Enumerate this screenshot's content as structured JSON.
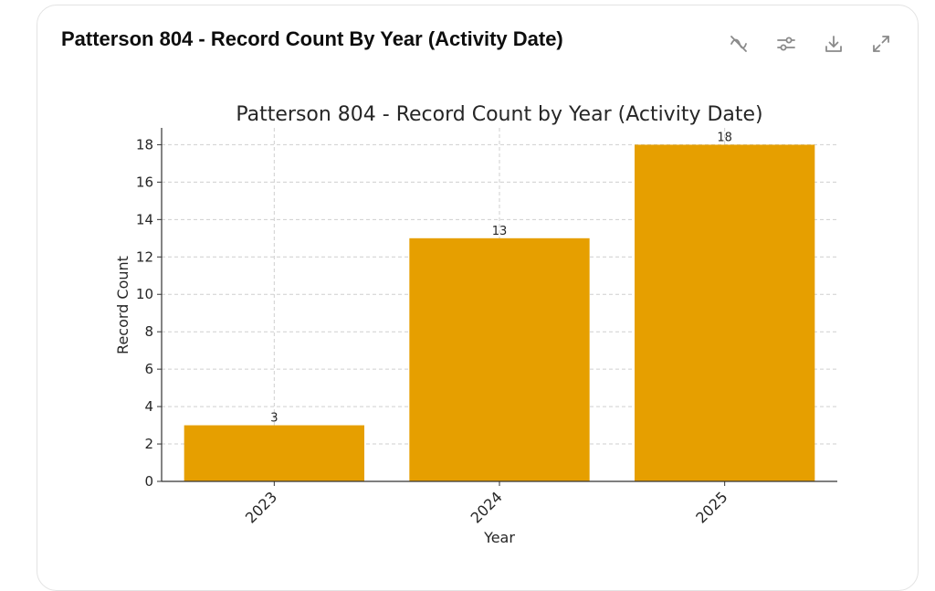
{
  "card": {
    "title": "Patterson 804 - Record Count By Year (Activity Date)"
  },
  "toolbar": {
    "icons": [
      "hide-series-icon",
      "settings-sliders-icon",
      "download-icon",
      "expand-icon"
    ]
  },
  "chart_data": {
    "type": "bar",
    "title": "Patterson 804 - Record Count by Year (Activity Date)",
    "xlabel": "Year",
    "ylabel": "Record Count",
    "categories": [
      "2023",
      "2024",
      "2025"
    ],
    "values": [
      3,
      13,
      18
    ],
    "data_labels": [
      "3",
      "13",
      "18"
    ],
    "yticks": [
      "0",
      "2",
      "4",
      "6",
      "8",
      "10",
      "12",
      "14",
      "16",
      "18"
    ],
    "ylim": [
      0,
      18.9
    ],
    "grid": true,
    "bar_color": "#e69f00"
  }
}
